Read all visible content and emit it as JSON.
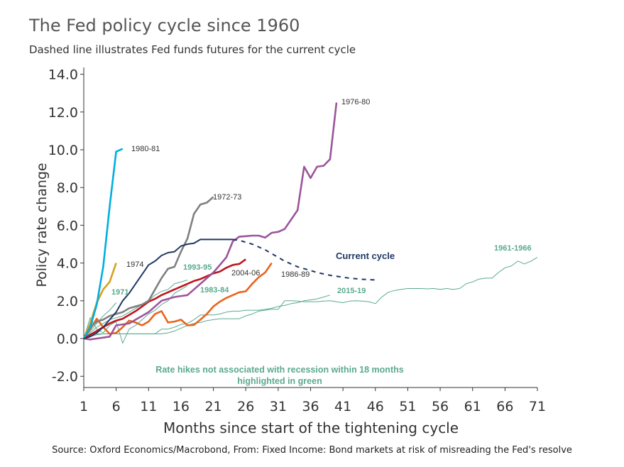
{
  "title": "The Fed policy cycle since 1960",
  "subtitle": "Dashed line illustrates Fed funds futures for the current cycle",
  "source": "Source: Oxford Economics/Macrobond, From: Fixed Income: Bond markets at risk of misreading the Fed's resolve",
  "chart_data": {
    "type": "line",
    "xlabel": "Months since start of the tightening cycle",
    "ylabel": "Policy rate change",
    "xlim": [
      1,
      71
    ],
    "ylim": [
      -2,
      14
    ],
    "xticks": [
      "1",
      "6",
      "11",
      "16",
      "21",
      "26",
      "31",
      "36",
      "41",
      "46",
      "51",
      "56",
      "61",
      "66",
      "71"
    ],
    "yticks": [
      "-2.0",
      "0.0",
      "2.0",
      "4.0",
      "6.0",
      "8.0",
      "10.0",
      "12.0",
      "14.0"
    ],
    "grid": false,
    "annotation": [
      "Rate hikes not associated with recession within 18 months",
      "highlighted in green"
    ],
    "series": [
      {
        "name": "1961-1966",
        "color": "#5aaa8e",
        "green": true,
        "values": [
          0,
          0.1,
          0.2,
          0.25,
          0.25,
          0.25,
          0.25,
          0.25,
          0.25,
          0.25,
          0.25,
          0.25,
          0.25,
          0.3,
          0.4,
          0.55,
          0.7,
          0.8,
          0.85,
          0.95,
          1.0,
          1.05,
          1.05,
          1.05,
          1.05,
          1.2,
          1.3,
          1.45,
          1.5,
          1.55,
          1.55,
          2.0,
          2.0,
          1.98,
          1.95,
          1.95,
          1.95,
          1.98,
          2.0,
          1.95,
          1.9,
          1.98,
          2.0,
          1.98,
          1.95,
          1.85,
          2.2,
          2.45,
          2.55,
          2.6,
          2.65,
          2.65,
          2.65,
          2.63,
          2.65,
          2.6,
          2.65,
          2.6,
          2.65,
          2.9,
          3.0,
          3.15,
          3.2,
          3.2,
          3.5,
          3.75,
          3.85,
          4.1,
          3.95,
          4.1,
          4.3
        ]
      },
      {
        "name": "2015-19",
        "color": "#5aaa8e",
        "green": true,
        "values": [
          0,
          0.25,
          0.25,
          0.25,
          0.25,
          0.25,
          0.25,
          0.25,
          0.25,
          0.25,
          0.25,
          0.25,
          0.5,
          0.5,
          0.6,
          0.75,
          0.8,
          1.0,
          1.25,
          1.25,
          1.25,
          1.3,
          1.4,
          1.45,
          1.45,
          1.5,
          1.5,
          1.5,
          1.55,
          1.6,
          1.7,
          1.75,
          1.85,
          1.9,
          2.0,
          2.05,
          2.1,
          2.2,
          2.3
        ]
      },
      {
        "name": "1993-95",
        "color": "#5aaa8e",
        "green": true,
        "values": [
          0,
          0.3,
          0.6,
          0.8,
          1.0,
          1.1,
          1.2,
          1.4,
          1.6,
          1.8,
          2.0,
          2.3,
          2.5,
          2.6,
          2.9,
          3.0,
          3.1
        ]
      },
      {
        "name": "1983-84",
        "color": "#5aaa8e",
        "green": true,
        "values": [
          0,
          1.1,
          0.5,
          0.3,
          0.7,
          0.9,
          -0.25,
          0.5,
          0.7,
          1.0,
          1.3,
          1.5,
          1.8,
          2.0,
          2.4,
          2.6,
          2.8
        ]
      },
      {
        "name": "1971",
        "color": "#5aaa8e",
        "green": true,
        "values": [
          0,
          0.4,
          0.8,
          1.2,
          1.5,
          1.9
        ]
      },
      {
        "name": "1986-89",
        "color": "#e8641e",
        "values": [
          0,
          0.5,
          1.05,
          0.6,
          0.25,
          0.3,
          0.6,
          0.95,
          0.85,
          0.7,
          0.9,
          1.3,
          1.45,
          0.85,
          0.9,
          1.0,
          0.7,
          0.72,
          1.0,
          1.3,
          1.7,
          1.95,
          2.15,
          2.3,
          2.45,
          2.5,
          2.9,
          3.25,
          3.5,
          4.0
        ]
      },
      {
        "name": "2004-06",
        "color": "#c0141e",
        "values": [
          0,
          0.2,
          0.4,
          0.6,
          0.8,
          0.95,
          1.05,
          1.25,
          1.45,
          1.7,
          1.95,
          2.1,
          2.3,
          2.45,
          2.6,
          2.75,
          2.9,
          3.05,
          3.15,
          3.3,
          3.45,
          3.55,
          3.75,
          3.9,
          3.95,
          4.2
        ]
      },
      {
        "name": "1976-80",
        "color": "#9b559b",
        "values": [
          0,
          -0.05,
          0,
          0.05,
          0.1,
          0.7,
          0.75,
          0.8,
          1.0,
          1.2,
          1.4,
          1.7,
          2.0,
          2.1,
          2.2,
          2.25,
          2.3,
          2.6,
          2.9,
          3.2,
          3.5,
          3.9,
          4.3,
          5.15,
          5.4,
          5.42,
          5.45,
          5.45,
          5.35,
          5.6,
          5.65,
          5.8,
          6.3,
          6.8,
          9.1,
          8.5,
          9.1,
          9.15,
          9.5,
          12.5
        ]
      },
      {
        "name": "1972-73",
        "color": "#808080",
        "values": [
          0,
          0.6,
          0.9,
          1.0,
          1.2,
          1.3,
          1.4,
          1.6,
          1.7,
          1.8,
          2.0,
          2.6,
          3.2,
          3.7,
          3.8,
          4.6,
          5.3,
          6.6,
          7.1,
          7.2,
          7.5
        ]
      },
      {
        "name": "1974",
        "color": "#d6a21e",
        "values": [
          0,
          0.8,
          1.9,
          2.6,
          3.0,
          4.0
        ]
      },
      {
        "name": "1980-81",
        "color": "#00aee0",
        "values": [
          0,
          0.6,
          1.8,
          3.8,
          7.0,
          9.9,
          10.05
        ]
      },
      {
        "name": "Current cycle",
        "color": "#1f3864",
        "values": [
          0,
          0.1,
          0.3,
          0.6,
          1.0,
          1.4,
          2.0,
          2.4,
          2.9,
          3.4,
          3.9,
          4.1,
          4.4,
          4.55,
          4.6,
          4.9,
          5.0,
          5.05,
          5.25,
          5.25,
          5.25,
          5.25,
          5.25,
          5.25
        ],
        "futures_start_month": 24,
        "futures": [
          5.25,
          5.2,
          5.1,
          5.0,
          4.85,
          4.7,
          4.5,
          4.3,
          4.1,
          3.95,
          3.8,
          3.7,
          3.6,
          3.5,
          3.42,
          3.35,
          3.3,
          3.25,
          3.2,
          3.17,
          3.14,
          3.12,
          3.1
        ]
      }
    ]
  }
}
